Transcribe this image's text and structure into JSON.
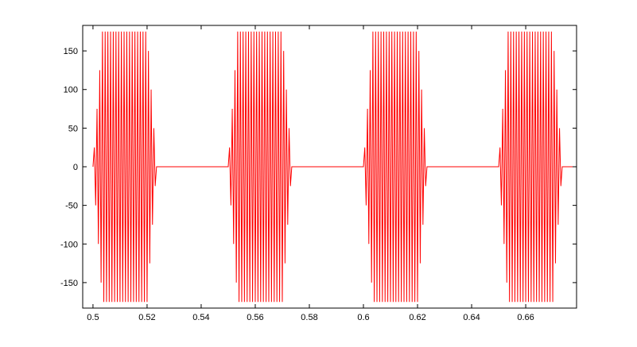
{
  "chart_data": {
    "type": "line",
    "color": "#ff0000",
    "xlim": [
      0.4962,
      0.6788
    ],
    "ylim": [
      -183,
      183
    ],
    "xticks": [
      0.5,
      0.52,
      0.54,
      0.56,
      0.58,
      0.6,
      0.62,
      0.64,
      0.66
    ],
    "yticks": [
      -150,
      -100,
      -50,
      0,
      50,
      100,
      150
    ],
    "x": [
      0.5,
      0.5005,
      0.501,
      0.5015,
      0.502,
      0.5025,
      0.503,
      0.5035,
      0.504,
      0.5045,
      0.505,
      0.5055,
      0.506,
      0.5065,
      0.507,
      0.5075,
      0.508,
      0.5085,
      0.509,
      0.5095,
      0.51,
      0.5105,
      0.511,
      0.5115,
      0.512,
      0.5125,
      0.513,
      0.5135,
      0.514,
      0.5145,
      0.515,
      0.5155,
      0.516,
      0.5165,
      0.517,
      0.5175,
      0.518,
      0.5185,
      0.519,
      0.5195,
      0.52,
      0.5205,
      0.521,
      0.5215,
      0.522,
      0.5225,
      0.523,
      0.5235,
      0.55,
      0.5505,
      0.551,
      0.5515,
      0.552,
      0.5525,
      0.553,
      0.5535,
      0.554,
      0.5545,
      0.555,
      0.5555,
      0.556,
      0.5565,
      0.557,
      0.5575,
      0.558,
      0.5585,
      0.559,
      0.5595,
      0.56,
      0.5605,
      0.561,
      0.5615,
      0.562,
      0.5625,
      0.563,
      0.5635,
      0.564,
      0.5645,
      0.565,
      0.5655,
      0.566,
      0.5665,
      0.567,
      0.5675,
      0.568,
      0.5685,
      0.569,
      0.5695,
      0.57,
      0.5705,
      0.571,
      0.5715,
      0.572,
      0.5725,
      0.573,
      0.5735,
      0.6,
      0.6005,
      0.601,
      0.6015,
      0.602,
      0.6025,
      0.603,
      0.6035,
      0.604,
      0.6045,
      0.605,
      0.6055,
      0.606,
      0.6065,
      0.607,
      0.6075,
      0.608,
      0.6085,
      0.609,
      0.6095,
      0.61,
      0.6105,
      0.611,
      0.6115,
      0.612,
      0.6125,
      0.613,
      0.6135,
      0.614,
      0.6145,
      0.615,
      0.6155,
      0.616,
      0.6165,
      0.617,
      0.6175,
      0.618,
      0.6185,
      0.619,
      0.6195,
      0.62,
      0.6205,
      0.621,
      0.6215,
      0.622,
      0.6225,
      0.623,
      0.6235,
      0.65,
      0.6505,
      0.651,
      0.6515,
      0.652,
      0.6525,
      0.653,
      0.6535,
      0.654,
      0.6545,
      0.655,
      0.6555,
      0.656,
      0.6565,
      0.657,
      0.6575,
      0.658,
      0.6585,
      0.659,
      0.6595,
      0.66,
      0.6605,
      0.661,
      0.6615,
      0.662,
      0.6625,
      0.663,
      0.6635,
      0.664,
      0.6645,
      0.665,
      0.6655,
      0.666,
      0.6665,
      0.667,
      0.6675,
      0.668,
      0.6685,
      0.669,
      0.6695,
      0.67,
      0.6705,
      0.671,
      0.6715,
      0.672,
      0.6725,
      0.673,
      0.6735,
      0.6788
    ],
    "values": [
      0,
      25,
      -50,
      75,
      -100,
      125,
      -150,
      175,
      -175,
      175,
      -175,
      175,
      -175,
      175,
      -175,
      175,
      -175,
      175,
      -175,
      175,
      -175,
      175,
      -175,
      175,
      -175,
      175,
      -175,
      175,
      -175,
      175,
      -175,
      175,
      -175,
      175,
      -175,
      175,
      -175,
      175,
      -175,
      175,
      -175,
      150,
      -125,
      100,
      -75,
      50,
      -25,
      0,
      0,
      25,
      -50,
      75,
      -100,
      125,
      -150,
      175,
      -175,
      175,
      -175,
      175,
      -175,
      175,
      -175,
      175,
      -175,
      175,
      -175,
      175,
      -175,
      175,
      -175,
      175,
      -175,
      175,
      -175,
      175,
      -175,
      175,
      -175,
      175,
      -175,
      175,
      -175,
      175,
      -175,
      175,
      -175,
      175,
      -175,
      150,
      -125,
      100,
      -75,
      50,
      -25,
      0,
      0,
      25,
      -50,
      75,
      -100,
      125,
      -150,
      175,
      -175,
      175,
      -175,
      175,
      -175,
      175,
      -175,
      175,
      -175,
      175,
      -175,
      175,
      -175,
      175,
      -175,
      175,
      -175,
      175,
      -175,
      175,
      -175,
      175,
      -175,
      175,
      -175,
      175,
      -175,
      175,
      -175,
      175,
      -175,
      175,
      -175,
      150,
      -125,
      100,
      -75,
      50,
      -25,
      0,
      0,
      25,
      -50,
      75,
      -100,
      125,
      -150,
      175,
      -175,
      175,
      -175,
      175,
      -175,
      175,
      -175,
      175,
      -175,
      175,
      -175,
      175,
      -175,
      175,
      -175,
      175,
      -175,
      175,
      -175,
      175,
      -175,
      175,
      -175,
      175,
      -175,
      175,
      -175,
      175,
      -175,
      175,
      -175,
      175,
      -175,
      150,
      -125,
      100,
      -75,
      50,
      -25,
      0,
      0
    ]
  }
}
